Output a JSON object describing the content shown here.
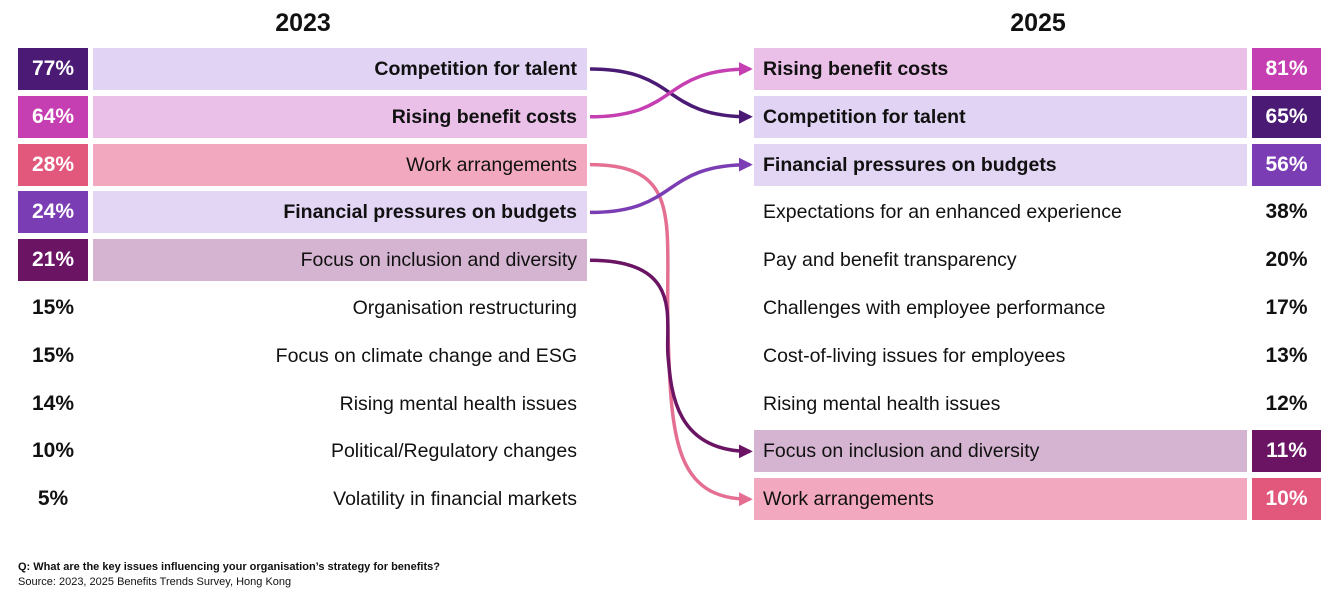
{
  "chart_data": {
    "type": "table",
    "columns": [
      {
        "year": "2023",
        "rows": [
          {
            "pct": "77%",
            "label": "Competition for talent",
            "bold": true,
            "highlight": "talent"
          },
          {
            "pct": "64%",
            "label": "Rising benefit costs",
            "bold": true,
            "highlight": "costs"
          },
          {
            "pct": "28%",
            "label": "Work arrangements",
            "bold": false,
            "highlight": "work"
          },
          {
            "pct": "24%",
            "label": "Financial pressures on budgets",
            "bold": true,
            "highlight": "budgets"
          },
          {
            "pct": "21%",
            "label": "Focus on inclusion and diversity",
            "bold": false,
            "highlight": "inclusion"
          },
          {
            "pct": "15%",
            "label": "Organisation restructuring",
            "bold": false,
            "highlight": null
          },
          {
            "pct": "15%",
            "label": "Focus on climate change and ESG",
            "bold": false,
            "highlight": null
          },
          {
            "pct": "14%",
            "label": "Rising mental health issues",
            "bold": false,
            "highlight": null
          },
          {
            "pct": "10%",
            "label": "Political/Regulatory changes",
            "bold": false,
            "highlight": null
          },
          {
            "pct": "5%",
            "label": "Volatility in financial markets",
            "bold": false,
            "highlight": null
          }
        ]
      },
      {
        "year": "2025",
        "rows": [
          {
            "pct": "81%",
            "label": "Rising benefit costs",
            "bold": true,
            "highlight": "costs"
          },
          {
            "pct": "65%",
            "label": "Competition for talent",
            "bold": true,
            "highlight": "talent"
          },
          {
            "pct": "56%",
            "label": "Financial pressures on budgets",
            "bold": true,
            "highlight": "budgets"
          },
          {
            "pct": "38%",
            "label": "Expectations for an enhanced experience",
            "bold": false,
            "highlight": null
          },
          {
            "pct": "20%",
            "label": "Pay and benefit transparency",
            "bold": false,
            "highlight": null
          },
          {
            "pct": "17%",
            "label": "Challenges with employee performance",
            "bold": false,
            "highlight": null
          },
          {
            "pct": "13%",
            "label": "Cost-of-living issues for employees",
            "bold": false,
            "highlight": null
          },
          {
            "pct": "12%",
            "label": "Rising mental health issues",
            "bold": false,
            "highlight": null
          },
          {
            "pct": "11%",
            "label": "Focus on inclusion and diversity",
            "bold": false,
            "highlight": "inclusion"
          },
          {
            "pct": "10%",
            "label": "Work arrangements",
            "bold": false,
            "highlight": "work"
          }
        ]
      }
    ],
    "colors": {
      "talent": {
        "dark": "#4a1a74",
        "light": "#e0d3f3",
        "line": "#4a1a74"
      },
      "costs": {
        "dark": "#c53fb2",
        "light": "#eabfe8",
        "line": "#c53fb2"
      },
      "work": {
        "dark": "#e2587d",
        "light": "#f2a9bf",
        "line": "#e46f92"
      },
      "budgets": {
        "dark": "#7b3db4",
        "light": "#e3d5f4",
        "line": "#7b3db4"
      },
      "inclusion": {
        "dark": "#6a1463",
        "light": "#d4b4d1",
        "line": "#6a1463"
      }
    },
    "links": [
      {
        "theme": "talent",
        "from": 0,
        "to": 1
      },
      {
        "theme": "costs",
        "from": 1,
        "to": 0
      },
      {
        "theme": "work",
        "from": 2,
        "to": 9
      },
      {
        "theme": "budgets",
        "from": 3,
        "to": 2
      },
      {
        "theme": "inclusion",
        "from": 4,
        "to": 8
      }
    ]
  },
  "footer": {
    "question": "Q: What are the key issues influencing your organisation’s strategy for benefits?",
    "source": "Source: 2023, 2025 Benefits Trends Survey, Hong Kong"
  }
}
